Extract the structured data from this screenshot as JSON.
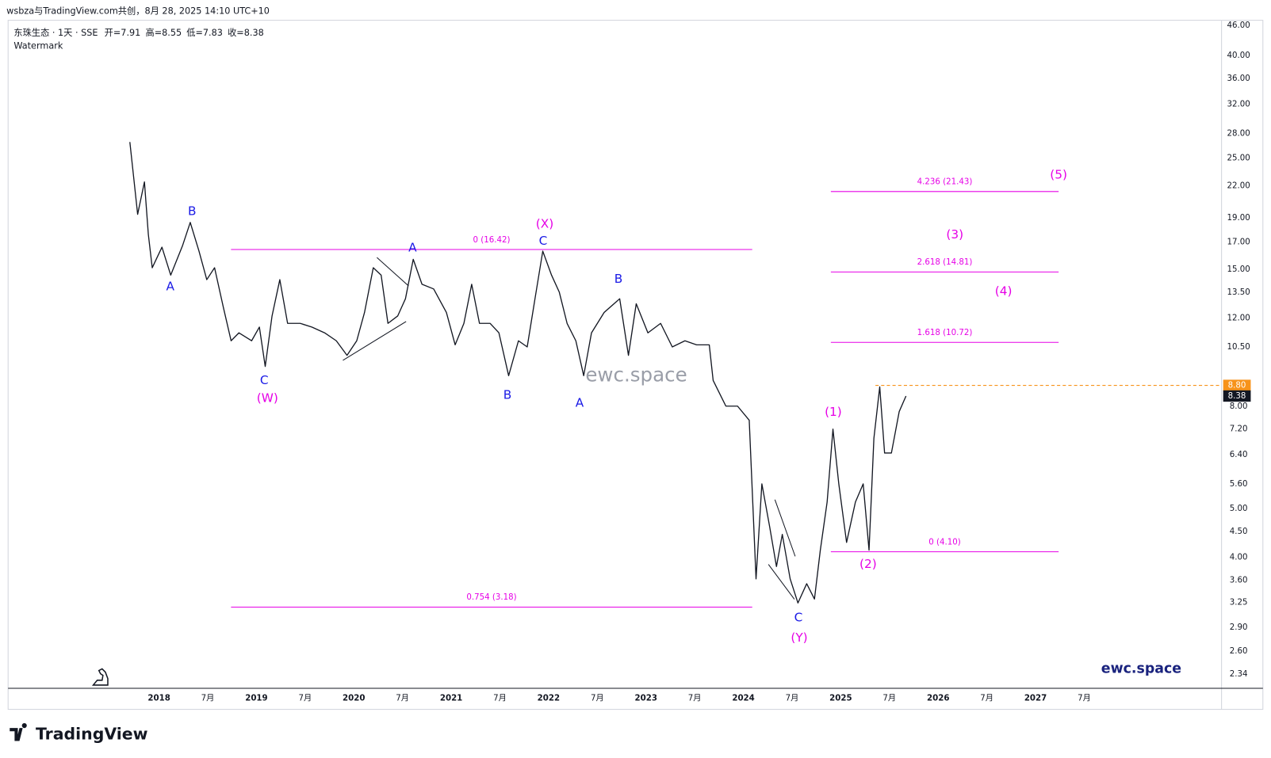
{
  "header": {
    "attribution": "wsbza与TradingView.com共创，8月 28, 2025 14:10 UTC+10"
  },
  "chart_data": {
    "type": "line",
    "symbol": "东珠生态 · 1天 · SSE",
    "ohlc": [
      "开=7.91",
      "高=8.55",
      "低=7.83",
      "收=8.38"
    ],
    "indicator": "Watermark",
    "watermark": "ewc.space",
    "brand_label": "ewc.space",
    "log_scale": true,
    "color": "#131722",
    "x": [
      2017.7,
      2017.74,
      2017.78,
      2017.85,
      2017.89,
      2017.93,
      2018.03,
      2018.12,
      2018.24,
      2018.32,
      2018.41,
      2018.49,
      2018.57,
      2018.66,
      2018.74,
      2018.82,
      2018.95,
      2019.03,
      2019.09,
      2019.16,
      2019.24,
      2019.32,
      2019.45,
      2019.57,
      2019.7,
      2019.82,
      2019.93,
      2020.03,
      2020.11,
      2020.2,
      2020.28,
      2020.35,
      2020.45,
      2020.53,
      2020.61,
      2020.7,
      2020.82,
      2020.95,
      2021.04,
      2021.13,
      2021.21,
      2021.29,
      2021.4,
      2021.49,
      2021.59,
      2021.69,
      2021.78,
      2021.86,
      2021.94,
      2022.03,
      2022.11,
      2022.19,
      2022.28,
      2022.36,
      2022.44,
      2022.57,
      2022.73,
      2022.82,
      2022.9,
      2023.02,
      2023.15,
      2023.27,
      2023.4,
      2023.52,
      2023.65,
      2023.69,
      2023.82,
      2023.94,
      2024.06,
      2024.13,
      2024.19,
      2024.27,
      2024.34,
      2024.4,
      2024.48,
      2024.56,
      2024.65,
      2024.73,
      2024.79,
      2024.86,
      2024.92,
      2024.98,
      2025.06,
      2025.15,
      2025.23,
      2025.29,
      2025.34,
      2025.4,
      2025.45,
      2025.52,
      2025.6,
      2025.67
    ],
    "values": [
      26.9,
      22.8,
      19.3,
      22.4,
      17.6,
      15.1,
      16.6,
      14.6,
      16.7,
      18.6,
      16.3,
      14.3,
      15.1,
      12.6,
      10.8,
      11.2,
      10.8,
      11.5,
      9.6,
      12.1,
      14.3,
      11.7,
      11.7,
      11.5,
      11.2,
      10.8,
      10.1,
      10.8,
      12.3,
      15.1,
      14.6,
      11.7,
      12.1,
      13.1,
      15.7,
      14.0,
      13.7,
      12.3,
      10.6,
      11.7,
      14.0,
      11.7,
      11.7,
      11.2,
      9.2,
      10.8,
      10.5,
      13.1,
      16.3,
      14.6,
      13.5,
      11.7,
      10.8,
      9.2,
      11.2,
      12.3,
      13.1,
      10.1,
      12.8,
      11.2,
      11.7,
      10.5,
      10.8,
      10.6,
      10.6,
      9.0,
      8.0,
      8.0,
      7.5,
      3.62,
      5.6,
      4.6,
      3.83,
      4.44,
      3.62,
      3.24,
      3.54,
      3.3,
      4.13,
      5.15,
      7.2,
      5.6,
      4.28,
      5.15,
      5.6,
      4.13,
      6.9,
      8.74,
      6.45,
      6.45,
      7.8,
      8.38
    ],
    "xlim": [
      2016.45,
      2028.91
    ],
    "ylim": [
      2.19,
      47.04
    ],
    "xticks": [
      2018,
      {
        "value": 2018.5,
        "label": "7月"
      },
      2019,
      {
        "value": 2019.5,
        "label": "7月"
      },
      2020,
      {
        "value": 2020.5,
        "label": "7月"
      },
      2021,
      {
        "value": 2021.5,
        "label": "7月"
      },
      2022,
      {
        "value": 2022.5,
        "label": "7月"
      },
      2023,
      {
        "value": 2023.5,
        "label": "7月"
      },
      2024,
      {
        "value": 2024.5,
        "label": "7月"
      },
      2025,
      {
        "value": 2025.5,
        "label": "7月"
      },
      2026,
      {
        "value": 2026.5,
        "label": "7月"
      },
      2027,
      {
        "value": 2027.5,
        "label": "7月"
      }
    ],
    "yticks": [
      {
        "value": 46,
        "label": "46.00"
      },
      {
        "value": 40,
        "label": "40.00"
      },
      {
        "value": 36,
        "label": "36.00"
      },
      {
        "value": 32,
        "label": "32.00"
      },
      {
        "value": 28,
        "label": "28.00"
      },
      {
        "value": 25,
        "label": "25.00"
      },
      {
        "value": 22,
        "label": "22.00"
      },
      {
        "value": 19,
        "label": "19.00"
      },
      {
        "value": 17,
        "label": "17.00"
      },
      {
        "value": 15,
        "label": "15.00"
      },
      {
        "value": 13.5,
        "label": "13.50"
      },
      {
        "value": 12,
        "label": "12.00"
      },
      {
        "value": 10.5,
        "label": "10.50"
      },
      {
        "value": 8,
        "label": "8.00"
      },
      {
        "value": 7.2,
        "label": "7.20"
      },
      {
        "value": 6.4,
        "label": "6.40"
      },
      {
        "value": 5.6,
        "label": "5.60"
      },
      {
        "value": 5,
        "label": "5.00"
      },
      {
        "value": 4.5,
        "label": "4.50"
      },
      {
        "value": 4,
        "label": "4.00"
      },
      {
        "value": 3.6,
        "label": "3.60"
      },
      {
        "value": 3.25,
        "label": "3.25"
      },
      {
        "value": 2.9,
        "label": "2.90"
      },
      {
        "value": 2.6,
        "label": "2.60"
      },
      {
        "value": 2.34,
        "label": "2.34"
      }
    ],
    "level_color": "#e600e6",
    "levels": [
      {
        "label": "0 (16.42)",
        "value": 16.42
      },
      {
        "label": "0.754 (3.18)",
        "value": 3.18
      },
      {
        "label": "4.236 (21.43)",
        "value": 21.43
      },
      {
        "label": "2.618 (14.81)",
        "value": 14.81
      },
      {
        "label": "1.618 (10.72)",
        "value": 10.72
      },
      {
        "label": "0 (4.10)",
        "value": 4.1
      }
    ],
    "price_lines": [
      {
        "value": 8.8,
        "label": "8.80",
        "color": "#f7931a"
      },
      {
        "value": 8.38,
        "label": "8.38",
        "color": "#131722"
      }
    ],
    "annotations": [
      {
        "text": "A",
        "color": "#1a1ae6"
      },
      {
        "text": "B",
        "color": "#1a1ae6"
      },
      {
        "text": "C",
        "color": "#1a1ae6"
      },
      {
        "text": "A",
        "color": "#1a1ae6"
      },
      {
        "text": "C",
        "color": "#1a1ae6"
      },
      {
        "text": "B",
        "color": "#1a1ae6"
      },
      {
        "text": "A",
        "color": "#1a1ae6"
      },
      {
        "text": "B",
        "color": "#1a1ae6"
      },
      {
        "text": "C",
        "color": "#1a1ae6"
      },
      {
        "text": "(W)",
        "color": "#e600e6"
      },
      {
        "text": "(X)",
        "color": "#e600e6"
      },
      {
        "text": "(Y)",
        "color": "#e600e6"
      },
      {
        "text": "(1)",
        "color": "#e600e6"
      },
      {
        "text": "(2)",
        "color": "#e600e6"
      },
      {
        "text": "(3)",
        "color": "#e600e6"
      },
      {
        "text": "(4)",
        "color": "#e600e6"
      },
      {
        "text": "(5)",
        "color": "#e600e6"
      }
    ]
  },
  "footer": {
    "logo": "TradingView"
  }
}
